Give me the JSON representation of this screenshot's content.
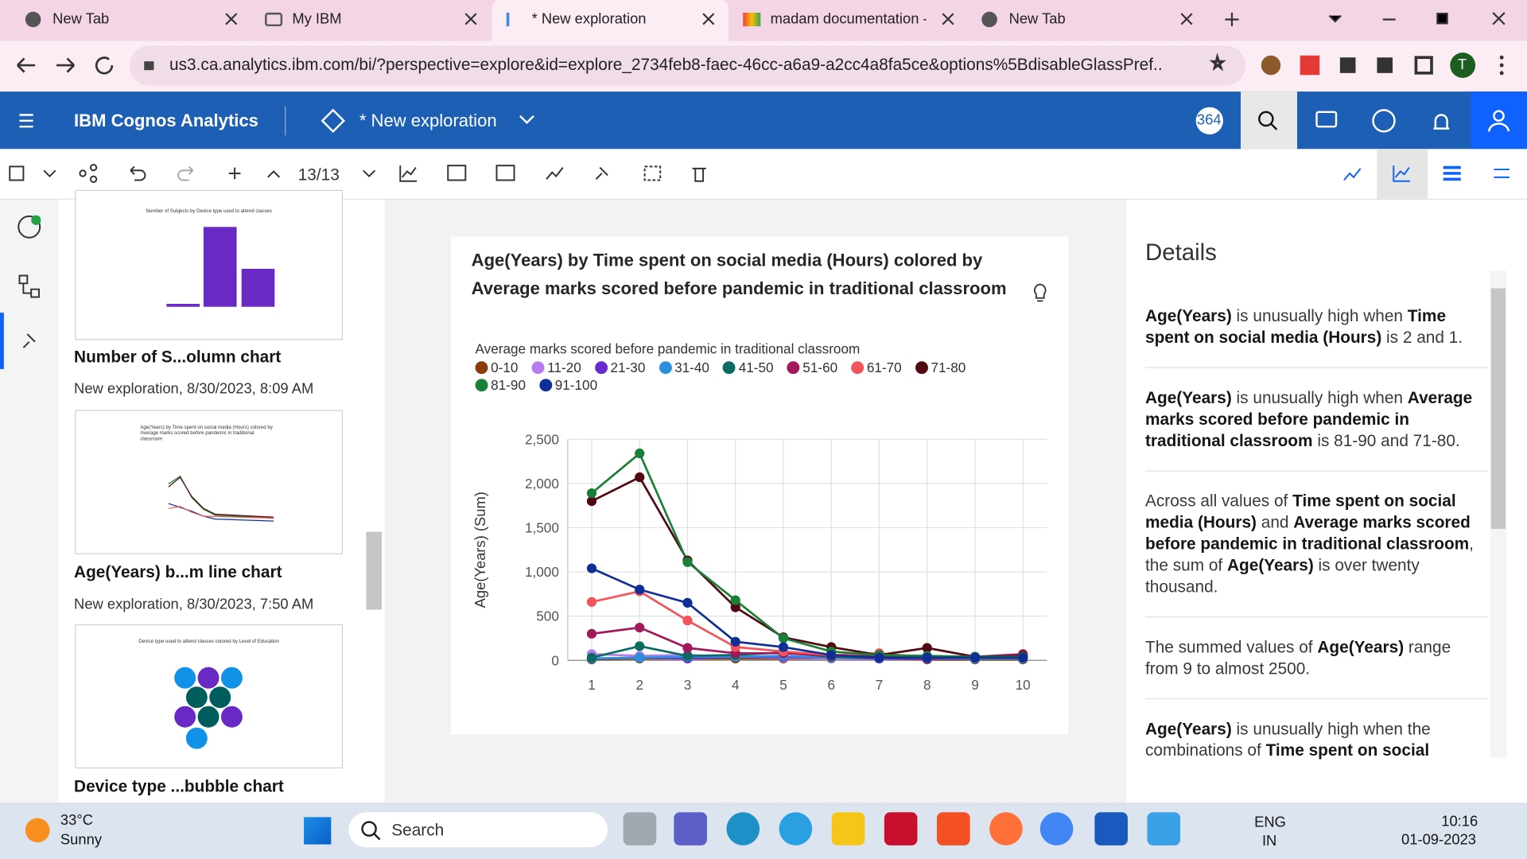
{
  "browser": {
    "tabs": [
      "New Tab",
      "My IBM",
      "* New exploration",
      "madam documentation -",
      "New Tab"
    ],
    "url": "us3.ca.analytics.ibm.com/bi/?perspective=explore&id=explore_2734feb8-faec-46cc-a6a9-a2cc4a8fa5ce&options%5BdisableGlassPref...",
    "profile": "T"
  },
  "app": {
    "product": "IBM Cognos Analytics",
    "exploration": "* New exploration",
    "badge": "364"
  },
  "toolbar": {
    "page_counter": "13/13"
  },
  "cards": [
    {
      "thumb_title": "Number of Subjects by Device type used to attend classes",
      "name": "Number of S...olumn chart",
      "meta": "New exploration, 8/30/2023, 8:09 AM"
    },
    {
      "thumb_title": "Age(Years) by Time spent on social media (Hours) colored by Average marks scored before pandemic in traditional classroom",
      "name": "Age(Years) b...m line chart",
      "meta": "New exploration, 8/30/2023, 7:50 AM"
    },
    {
      "thumb_title": "Device type used to attend classes colored by Level of Education",
      "name": "Device type ...bubble chart"
    }
  ],
  "chart_data": {
    "type": "line",
    "title": "Age(Years) by Time spent on social media (Hours) colored by Average marks scored before pandemic in traditional classroom",
    "legend_title": "Average marks scored before pandemic in traditional classroom",
    "y_label": "Age(Years) (Sum)",
    "x": [
      1,
      2,
      3,
      4,
      5,
      6,
      7,
      8,
      9,
      10
    ],
    "xlim": [
      0.5,
      10.5
    ],
    "xticks": [
      1,
      2,
      3,
      4,
      5,
      6,
      7,
      8,
      9,
      10
    ],
    "ylim": [
      0,
      2500
    ],
    "yticks": [
      0,
      500,
      {
        "value": 1000,
        "label": "1,000"
      },
      {
        "value": 1500,
        "label": "1,500"
      },
      {
        "value": 2000,
        "label": "2,000"
      },
      {
        "value": 2500,
        "label": "2,500"
      }
    ],
    "grid": true,
    "series": [
      {
        "name": "0-10",
        "color": "#8a3b0c",
        "values": [
          10,
          20,
          20,
          20,
          20,
          20,
          20,
          10,
          10,
          10
        ]
      },
      {
        "name": "11-20",
        "color": "#b57bef",
        "values": [
          70,
          50,
          60,
          40,
          30,
          20,
          20,
          20,
          20,
          20
        ]
      },
      {
        "name": "21-30",
        "color": "#6a2ad2",
        "values": [
          20,
          30,
          20,
          40,
          40,
          30,
          20,
          20,
          20,
          30
        ]
      },
      {
        "name": "31-40",
        "color": "#2a8fdc",
        "values": [
          20,
          30,
          40,
          40,
          50,
          30,
          30,
          30,
          20,
          20
        ]
      },
      {
        "name": "41-50",
        "color": "#0b6a62",
        "values": [
          30,
          160,
          50,
          60,
          90,
          40,
          30,
          30,
          30,
          30
        ]
      },
      {
        "name": "51-60",
        "color": "#a2185a",
        "values": [
          300,
          370,
          140,
          80,
          80,
          50,
          50,
          30,
          40,
          70
        ]
      },
      {
        "name": "61-70",
        "color": "#f2545b",
        "values": [
          660,
          780,
          450,
          150,
          100,
          60,
          80,
          30,
          30,
          30
        ]
      },
      {
        "name": "71-80",
        "color": "#520810",
        "values": [
          1800,
          2070,
          1130,
          600,
          260,
          150,
          60,
          140,
          40,
          50
        ]
      },
      {
        "name": "81-90",
        "color": "#198038",
        "values": [
          1890,
          2340,
          1110,
          680,
          250,
          100,
          60,
          50,
          40,
          40
        ]
      },
      {
        "name": "91-100",
        "color": "#0f2f96",
        "values": [
          1040,
          800,
          650,
          210,
          150,
          60,
          30,
          30,
          30,
          30
        ]
      }
    ]
  },
  "details": {
    "title": "Details",
    "insights": [
      [
        {
          "text": "Age(Years)",
          "bold": true
        },
        {
          "text": " is unusually high when ",
          "bold": false
        },
        {
          "text": "Time spent on social media (Hours)",
          "bold": true
        },
        {
          "text": " is 2 and 1.",
          "bold": false
        }
      ],
      [
        {
          "text": "Age(Years)",
          "bold": true
        },
        {
          "text": " is unusually high when ",
          "bold": false
        },
        {
          "text": "Average marks scored before pandemic in traditional classroom",
          "bold": true
        },
        {
          "text": " is 81-90 and 71-80.",
          "bold": false
        }
      ],
      [
        {
          "text": "Across all values of ",
          "bold": false
        },
        {
          "text": "Time spent on social media (Hours)",
          "bold": true
        },
        {
          "text": " and ",
          "bold": false
        },
        {
          "text": "Average marks scored before pandemic in traditional classroom",
          "bold": true
        },
        {
          "text": ", the sum of ",
          "bold": false
        },
        {
          "text": "Age(Years)",
          "bold": true
        },
        {
          "text": " is over twenty thousand.",
          "bold": false
        }
      ],
      [
        {
          "text": "The summed values of ",
          "bold": false
        },
        {
          "text": "Age(Years)",
          "bold": true
        },
        {
          "text": " range from 9 to almost 2500.",
          "bold": false
        }
      ],
      [
        {
          "text": "Age(Years)",
          "bold": true
        },
        {
          "text": " is unusually high when the combinations of ",
          "bold": false
        },
        {
          "text": "Time spent on social media",
          "bold": true
        }
      ]
    ]
  },
  "taskbar": {
    "temperature": "33°C",
    "weather": "Sunny",
    "search": "Search",
    "language": "ENG",
    "region": "IN",
    "time": "10:16",
    "date": "01-09-2023"
  }
}
